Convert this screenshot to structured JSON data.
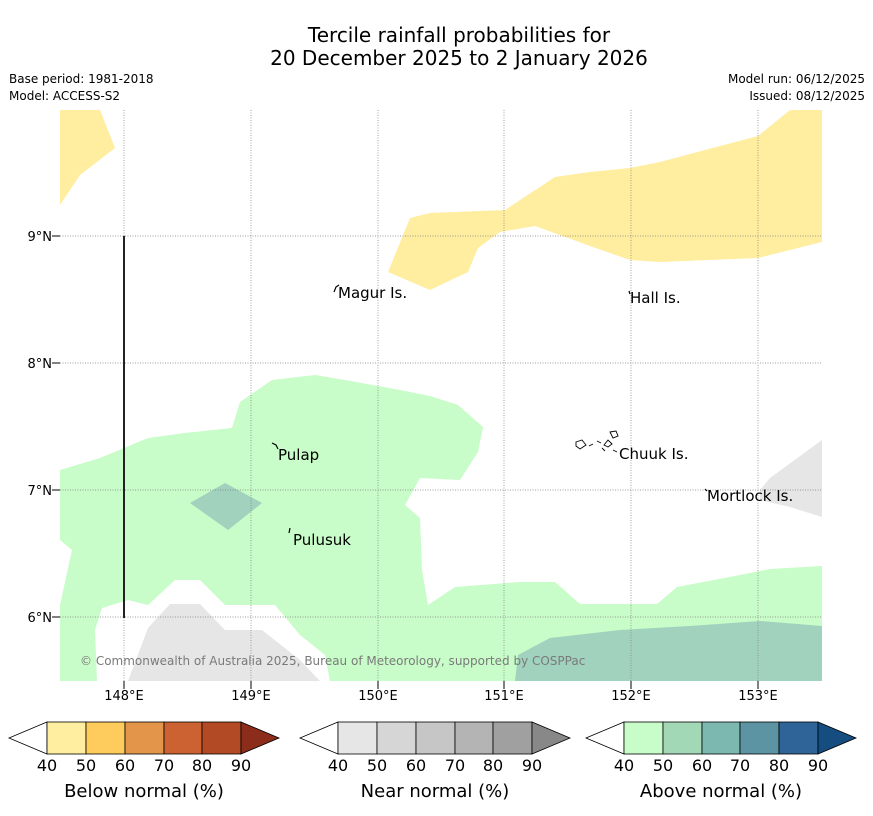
{
  "title": {
    "line1": "Tercile rainfall probabilities for",
    "line2": "20 December 2025 to 2 January 2026"
  },
  "meta": {
    "base_period": "Base period: 1981-2018",
    "model": "Model: ACCESS-S2",
    "model_run": "Model run: 06/12/2025",
    "issued": "Issued: 08/12/2025"
  },
  "map": {
    "lat_labels": [
      "9°N",
      "8°N",
      "7°N",
      "6°N"
    ],
    "lon_labels": [
      "148°E",
      "149°E",
      "150°E",
      "151°E",
      "152°E",
      "153°E"
    ],
    "places": {
      "magur": "Magur Is.",
      "hall": "Hall Is.",
      "pulap": "Pulap",
      "chuuk": "Chuuk Is.",
      "mortlock": "Mortlock Is.",
      "pulusuk": "Pulusuk"
    },
    "copyright": "© Commonwealth of Australia 2025, Bureau of Meteorology, supported by COSPPac"
  },
  "colorbars": {
    "ticks": [
      "40",
      "50",
      "60",
      "70",
      "80",
      "90"
    ],
    "below": {
      "label": "Below normal (%)",
      "colors": [
        "#ffeda0",
        "#fecc5c",
        "#e3964a",
        "#cc6132",
        "#b34a26",
        "#8c2c1a"
      ]
    },
    "near": {
      "label": "Near normal (%)",
      "colors": [
        "#e6e6e6",
        "#d6d6d6",
        "#c6c6c6",
        "#b4b4b4",
        "#a0a0a0",
        "#888888"
      ]
    },
    "above": {
      "label": "Above normal (%)",
      "colors": [
        "#c8fcc8",
        "#a3d8b6",
        "#7db8b0",
        "#5d94a4",
        "#2f6499",
        "#154d80"
      ]
    }
  }
}
